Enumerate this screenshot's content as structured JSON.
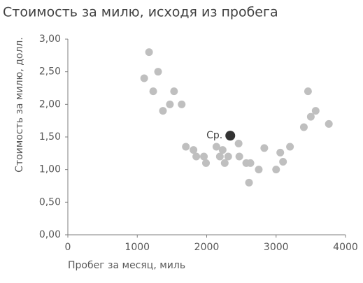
{
  "chart_data": {
    "type": "scatter",
    "title": "Стоимость за милю, исходя из пробега",
    "x_label": "Пробег за месяц, миль",
    "y_label": "Стоимость за милю, долл.",
    "xlim": [
      0,
      4000
    ],
    "xticks": [
      0,
      1000,
      2000,
      3000,
      4000
    ],
    "ylim": [
      0,
      3
    ],
    "yticks": [
      {
        "value": 0,
        "label": "0,00"
      },
      {
        "value": 0.5,
        "label": "0,50"
      },
      {
        "value": 1,
        "label": "1,00"
      },
      {
        "value": 1.5,
        "label": "1,50"
      },
      {
        "value": 2,
        "label": "2,00"
      },
      {
        "value": 2.5,
        "label": "2,50"
      },
      {
        "value": 3,
        "label": "3,00"
      }
    ],
    "series": [
      {
        "color": "#bfbfbf",
        "x": [
          1100,
          1170,
          1300,
          1230,
          1370,
          1470,
          1530,
          1640,
          1700,
          1810,
          1850,
          1960,
          1990,
          2140,
          2190,
          2230,
          2260,
          2310,
          2460,
          2470,
          2570,
          2630,
          2610,
          2750,
          2830,
          3000,
          3060,
          3100,
          3200,
          3400,
          3460,
          3500,
          3570,
          3760
        ],
        "values": [
          2.4,
          2.8,
          2.5,
          2.2,
          1.9,
          2.0,
          2.2,
          2.0,
          1.35,
          1.3,
          1.2,
          1.2,
          1.1,
          1.35,
          1.2,
          1.3,
          1.1,
          1.2,
          1.4,
          1.2,
          1.1,
          1.1,
          0.8,
          1.0,
          1.33,
          1.0,
          1.26,
          1.12,
          1.35,
          1.65,
          2.2,
          1.81,
          1.9,
          1.7
        ]
      },
      {
        "name": "Ср.",
        "color": "#333333",
        "x": [
          2340
        ],
        "values": [
          1.52
        ]
      }
    ]
  }
}
